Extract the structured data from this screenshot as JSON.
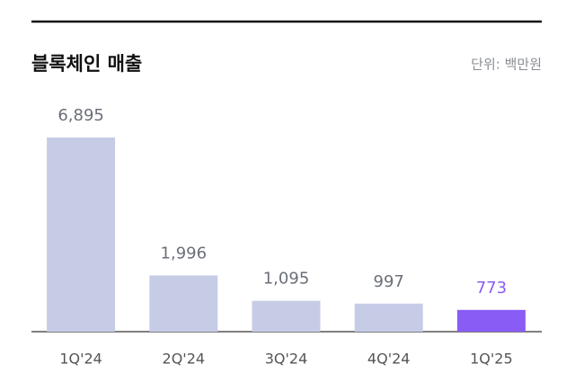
{
  "chart_data": {
    "type": "bar",
    "title": "블록체인 매출",
    "subtitle": "단위: 백만원",
    "categories": [
      "1Q'24",
      "2Q'24",
      "3Q'24",
      "4Q'24",
      "1Q'25"
    ],
    "values": [
      6895,
      1996,
      1095,
      997,
      773
    ],
    "value_labels": [
      "6,895",
      "1,996",
      "1,095",
      "997",
      "773"
    ],
    "colors": [
      "#c6cce6",
      "#c6cce6",
      "#c6cce6",
      "#c6cce6",
      "#8a5cf6"
    ],
    "value_label_colors": [
      "#6b6f78",
      "#6b6f78",
      "#6b6f78",
      "#6b6f78",
      "#8a5cf6"
    ]
  }
}
